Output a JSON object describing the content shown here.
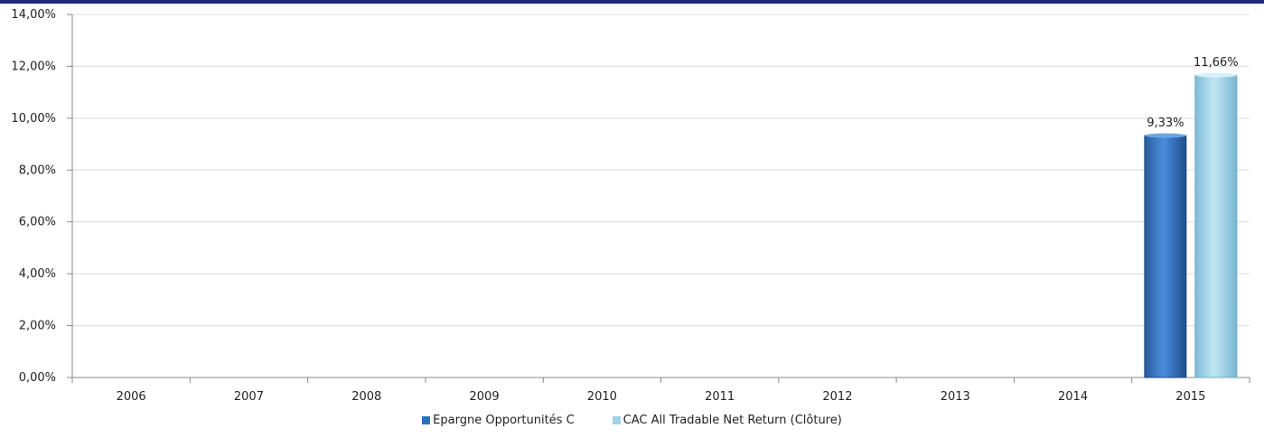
{
  "chart_data": {
    "type": "bar",
    "categories": [
      "2006",
      "2007",
      "2008",
      "2009",
      "2010",
      "2011",
      "2012",
      "2013",
      "2014",
      "2015"
    ],
    "series": [
      {
        "name": "Epargne Opportunités C",
        "values": [
          null,
          null,
          null,
          null,
          null,
          null,
          null,
          null,
          null,
          9.33
        ],
        "labels": [
          "",
          "",
          "",
          "",
          "",
          "",
          "",
          "",
          "",
          "9,33%"
        ],
        "color": "#3f7fcf"
      },
      {
        "name": "CAC All Tradable Net Return (Clôture)",
        "values": [
          null,
          null,
          null,
          null,
          null,
          null,
          null,
          null,
          null,
          11.66
        ],
        "labels": [
          "",
          "",
          "",
          "",
          "",
          "",
          "",
          "",
          "",
          "11,66%"
        ],
        "color": "#9fd3e6"
      }
    ],
    "ylim": [
      0,
      14
    ],
    "yticks": [
      0,
      2,
      4,
      6,
      8,
      10,
      12,
      14
    ],
    "ytick_labels": [
      "0,00%",
      "2,00%",
      "4,00%",
      "6,00%",
      "8,00%",
      "10,00%",
      "12,00%",
      "14,00%"
    ],
    "grid": true,
    "legend_position": "bottom",
    "title": "",
    "xlabel": "",
    "ylabel": ""
  }
}
